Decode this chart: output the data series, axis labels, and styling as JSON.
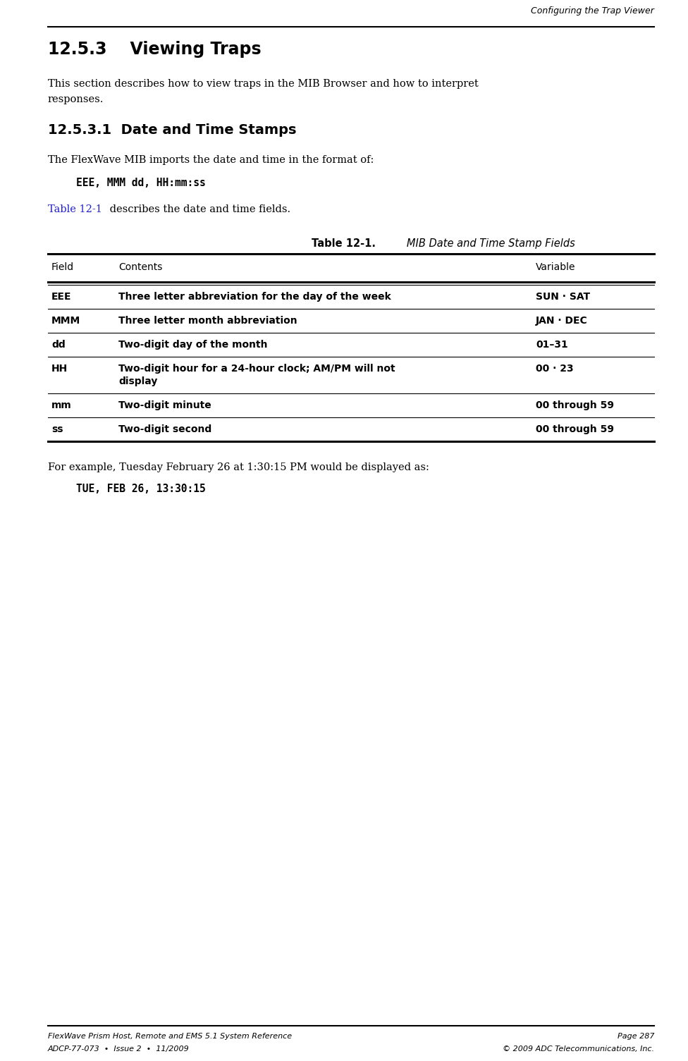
{
  "bg_color": "#ffffff",
  "header_text": "Configuring the Trap Viewer",
  "section_title": "12.5.3    Viewing Traps",
  "subsection_title": "12.5.3.1  Date and Time Stamps",
  "body_text1a": "This section describes how to view traps in the MIB Browser and how to interpret",
  "body_text1b": "responses.",
  "body_text2": "The FlexWave MIB imports the date and time in the format of:",
  "code_text1": "EEE, MMM dd, HH:mm:ss",
  "link_text": "Table 12-1",
  "body_text3": " describes the date and time fields.",
  "table_caption_bold": "Table 12-1.",
  "table_caption_italic": "   MIB Date and Time Stamp Fields",
  "table_headers": [
    "Field",
    "Contents",
    "Variable"
  ],
  "table_rows": [
    [
      "EEE",
      "Three letter abbreviation for the day of the week",
      "SUN · SAT"
    ],
    [
      "MMM",
      "Three letter month abbreviation",
      "JAN · DEC"
    ],
    [
      "dd",
      "Two-digit day of the month",
      "01–31"
    ],
    [
      "HH",
      "Two-digit hour for a 24-hour clock; AM/PM will not\ndisplay",
      "00 · 23"
    ],
    [
      "mm",
      "Two-digit minute",
      "00 through 59"
    ],
    [
      "ss",
      "Two-digit second",
      "00 through 59"
    ]
  ],
  "body_text4": "For example, Tuesday February 26 at 1:30:15 PM would be displayed as:",
  "code_text2": "TUE, FEB 26, 13:30:15",
  "footer_left1": "FlexWave Prism Host, Remote and EMS 5.1 System Reference",
  "footer_right1": "Page 287",
  "footer_left2": "ADCP-77-073  •  Issue 2  •  11/2009",
  "footer_right2": "© 2009 ADC Telecommunications, Inc.",
  "link_color": "#2222CC",
  "text_color": "#000000",
  "header_color": "#000000"
}
